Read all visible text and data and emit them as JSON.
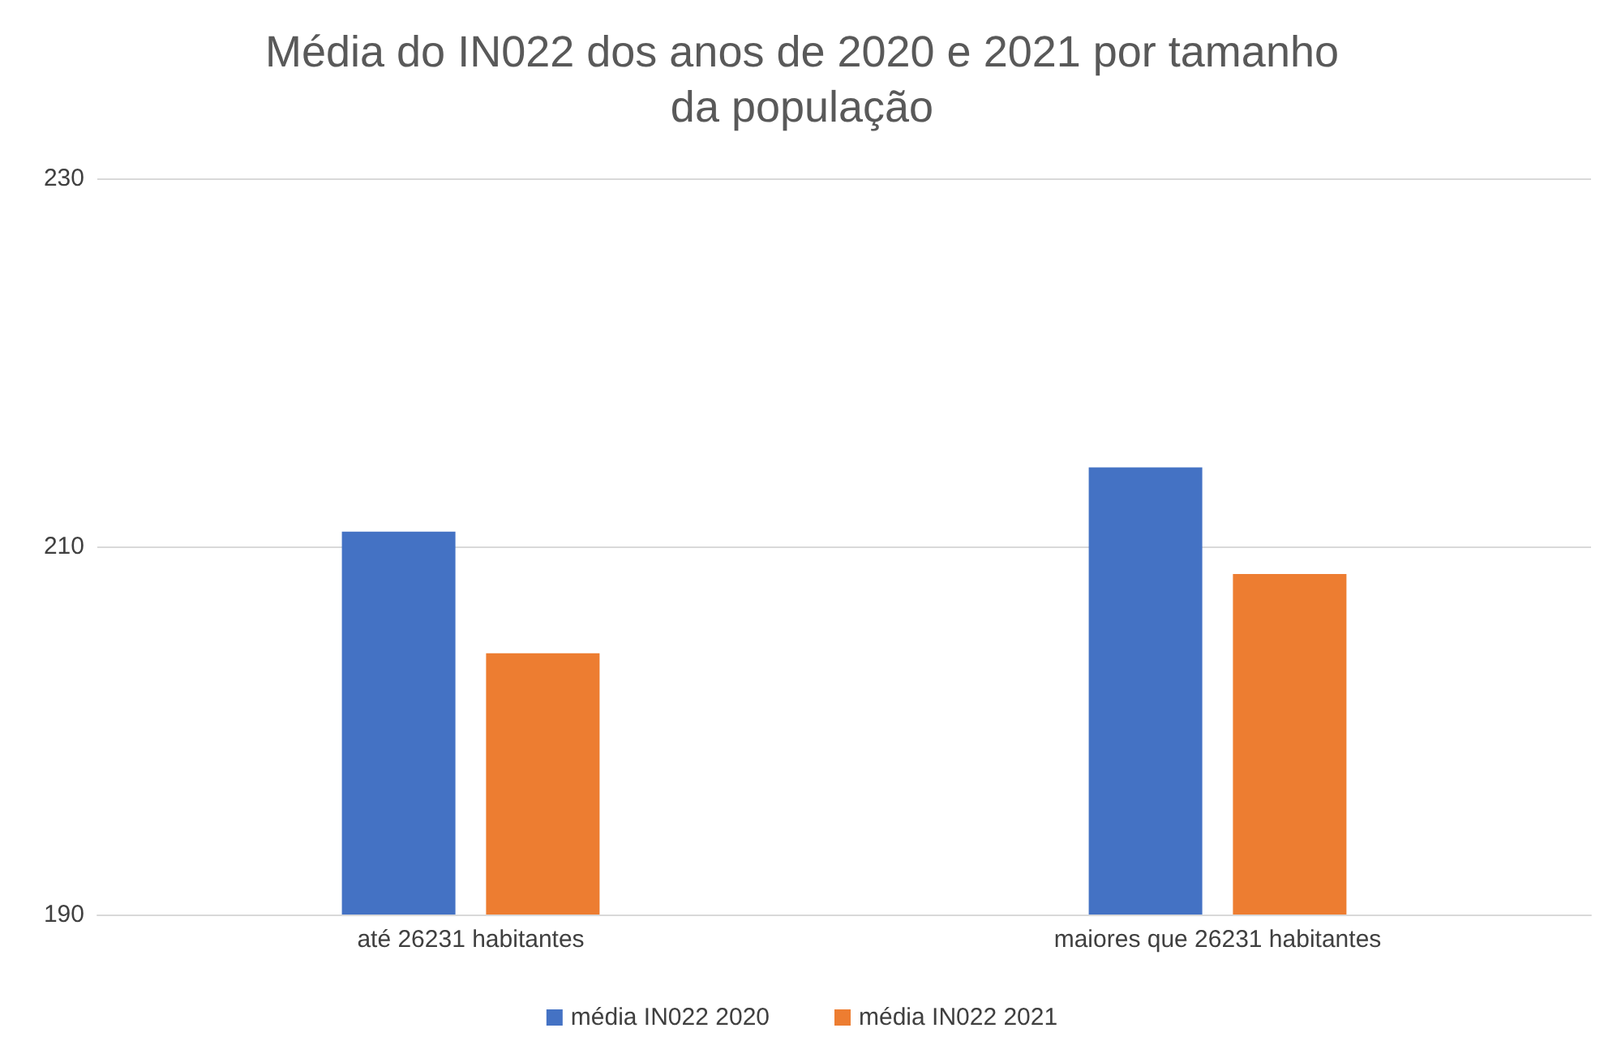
{
  "chart_data": {
    "type": "bar",
    "title": "Média do IN022 dos anos de 2020 e 2021 por tamanho\nda população",
    "categories": [
      "até 26231 habitantes",
      "maiores que 26231 habitantes"
    ],
    "series": [
      {
        "name": "média IN022 2020",
        "color": "#4472c4",
        "values": [
          210.8,
          214.3
        ]
      },
      {
        "name": "média IN022 2021",
        "color": "#ed7d31",
        "values": [
          204.2,
          208.5
        ]
      }
    ],
    "ylim": [
      190,
      230
    ],
    "yticks": [
      190,
      210,
      230
    ],
    "grid": "y",
    "legend": "bottom"
  }
}
